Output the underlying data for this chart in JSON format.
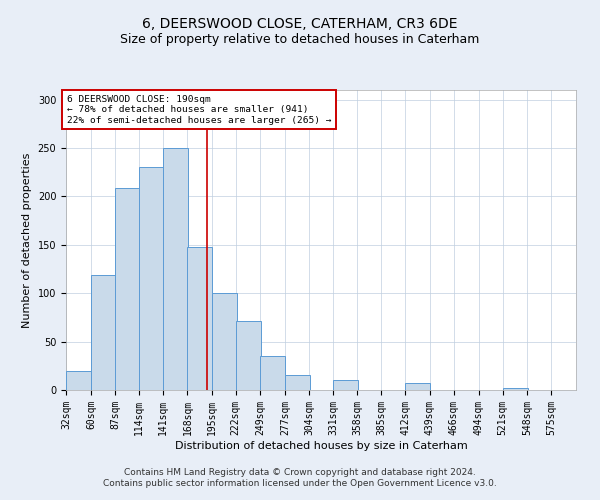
{
  "title": "6, DEERSWOOD CLOSE, CATERHAM, CR3 6DE",
  "subtitle": "Size of property relative to detached houses in Caterham",
  "xlabel": "Distribution of detached houses by size in Caterham",
  "ylabel": "Number of detached properties",
  "bar_color": "#c9daea",
  "bar_edge_color": "#5b9bd5",
  "bin_labels": [
    "32sqm",
    "60sqm",
    "87sqm",
    "114sqm",
    "141sqm",
    "168sqm",
    "195sqm",
    "222sqm",
    "249sqm",
    "277sqm",
    "304sqm",
    "331sqm",
    "358sqm",
    "385sqm",
    "412sqm",
    "439sqm",
    "466sqm",
    "494sqm",
    "521sqm",
    "548sqm",
    "575sqm"
  ],
  "bin_edges": [
    32,
    60,
    87,
    114,
    141,
    168,
    195,
    222,
    249,
    277,
    304,
    331,
    358,
    385,
    412,
    439,
    466,
    494,
    521,
    548,
    575
  ],
  "bar_heights": [
    20,
    119,
    209,
    230,
    250,
    148,
    100,
    71,
    35,
    15,
    0,
    10,
    0,
    0,
    7,
    0,
    0,
    0,
    2,
    0,
    0
  ],
  "vline_x": 190,
  "vline_color": "#cc0000",
  "ylim": [
    0,
    310
  ],
  "yticks": [
    0,
    50,
    100,
    150,
    200,
    250,
    300
  ],
  "annotation_title": "6 DEERSWOOD CLOSE: 190sqm",
  "annotation_line1": "← 78% of detached houses are smaller (941)",
  "annotation_line2": "22% of semi-detached houses are larger (265) →",
  "annotation_box_color": "#ffffff",
  "annotation_box_edge": "#cc0000",
  "footer_line1": "Contains HM Land Registry data © Crown copyright and database right 2024.",
  "footer_line2": "Contains public sector information licensed under the Open Government Licence v3.0.",
  "bg_color": "#e8eef7",
  "plot_bg_color": "#ffffff",
  "title_fontsize": 10,
  "subtitle_fontsize": 9,
  "axis_label_fontsize": 8,
  "tick_fontsize": 7,
  "footer_fontsize": 6.5
}
